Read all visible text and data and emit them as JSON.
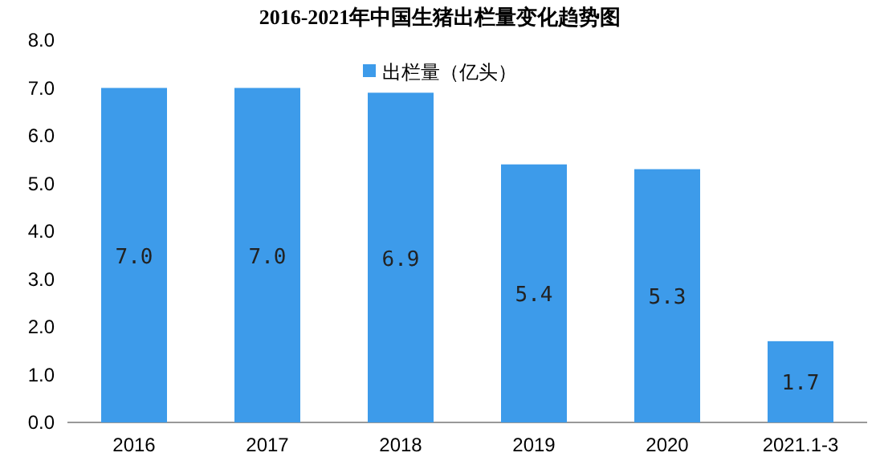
{
  "chart_data": {
    "type": "bar",
    "title": "2016-2021年中国生猪出栏量变化趋势图",
    "categories": [
      "2016",
      "2017",
      "2018",
      "2019",
      "2020",
      "2021.1-3"
    ],
    "series": [
      {
        "name": "出栏量（亿头）",
        "color": "#3d9bea",
        "values": [
          7.0,
          7.0,
          6.9,
          5.4,
          5.3,
          1.7
        ],
        "value_labels": [
          "7.0",
          "7.0",
          "6.9",
          "5.4",
          "5.3",
          "1.7"
        ]
      }
    ],
    "ylim": [
      0,
      8
    ],
    "yticks": [
      {
        "value": 0,
        "label": "0.0"
      },
      {
        "value": 1,
        "label": "1.0"
      },
      {
        "value": 2,
        "label": "2.0"
      },
      {
        "value": 3,
        "label": "3.0"
      },
      {
        "value": 4,
        "label": "4.0"
      },
      {
        "value": 5,
        "label": "5.0"
      },
      {
        "value": 6,
        "label": "6.0"
      },
      {
        "value": 7,
        "label": "7.0"
      },
      {
        "value": 8,
        "label": "8.0"
      }
    ],
    "legend": "top",
    "grid": false
  }
}
